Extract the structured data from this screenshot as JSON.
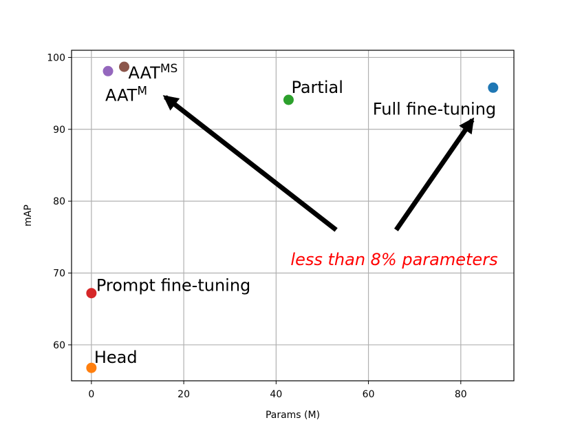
{
  "chart_data": {
    "type": "scatter",
    "title": "",
    "xlabel": "Params (M)",
    "ylabel": "mAP",
    "xlim": [
      -4.3,
      91.5
    ],
    "ylim": [
      55.0,
      101.0
    ],
    "xticks": [
      0,
      20,
      40,
      60,
      80
    ],
    "yticks": [
      60,
      70,
      80,
      90,
      100
    ],
    "grid": true,
    "points": [
      {
        "name": "Full fine-tuning",
        "x": 87.0,
        "y": 95.8,
        "color": "#1f77b4"
      },
      {
        "name": "Head",
        "x": 0.0,
        "y": 56.8,
        "color": "#ff7f0e"
      },
      {
        "name": "Partial",
        "x": 42.7,
        "y": 94.1,
        "color": "#2ca02c"
      },
      {
        "name": "Prompt fine-tuning",
        "x": 0.0,
        "y": 67.2,
        "color": "#d62728"
      },
      {
        "name": "AAT^M",
        "base": "AAT",
        "sup": "M",
        "x": 3.6,
        "y": 98.1,
        "color": "#9467bd"
      },
      {
        "name": "AAT^MS",
        "base": "AAT",
        "sup": "MS",
        "x": 7.1,
        "y": 98.7,
        "color": "#8c564b"
      }
    ],
    "annotation": {
      "text": "less than 8% parameters",
      "color": "#ff0000",
      "arrows": [
        {
          "from": [
            53.0,
            76.0
          ],
          "to": [
            16.0,
            94.5
          ]
        },
        {
          "from": [
            66.0,
            76.0
          ],
          "to": [
            82.5,
            91.3
          ]
        }
      ]
    }
  }
}
